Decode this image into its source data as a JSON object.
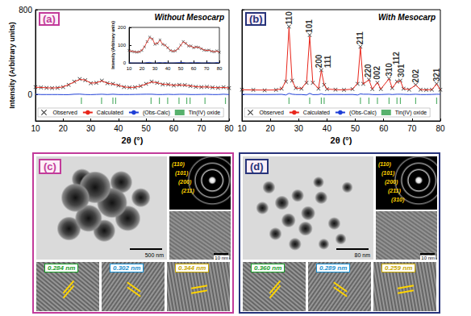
{
  "chart_data": [
    {
      "type": "line",
      "title": "(a)",
      "subtitle": "Without Mesocarp",
      "xlabel": "2θ (°)",
      "ylabel": "Intensity (Arbitrary units)",
      "xlim": [
        10,
        80
      ],
      "xticks": [
        10,
        20,
        30,
        40,
        50,
        60,
        70,
        80
      ],
      "ylim": [
        -250,
        800
      ],
      "yticks": [
        0,
        800
      ],
      "grid": false,
      "legend": "bottom",
      "tick_labels": true,
      "x": [
        10,
        12,
        14,
        16,
        18,
        20,
        22,
        24,
        26,
        28,
        30,
        32,
        34,
        36,
        38,
        40,
        42,
        44,
        46,
        48,
        50,
        52,
        54,
        56,
        58,
        60,
        62,
        64,
        66,
        68,
        70,
        72,
        74,
        76,
        78,
        80
      ],
      "series": [
        {
          "name": "Observed",
          "type": "scatter",
          "marker": "x",
          "color": "#000000",
          "values": [
            70,
            65,
            62,
            60,
            62,
            70,
            90,
            120,
            145,
            135,
            105,
            110,
            130,
            105,
            100,
            85,
            70,
            65,
            68,
            80,
            100,
            120,
            110,
            95,
            95,
            85,
            90,
            88,
            80,
            72,
            70,
            72,
            65,
            62,
            68,
            60
          ]
        },
        {
          "name": "Calculated",
          "type": "line",
          "color": "#e8261b",
          "values": [
            68,
            66,
            63,
            61,
            63,
            72,
            92,
            118,
            142,
            136,
            107,
            110,
            128,
            106,
            98,
            86,
            71,
            66,
            68,
            79,
            98,
            118,
            111,
            96,
            94,
            86,
            89,
            87,
            81,
            73,
            70,
            71,
            66,
            63,
            66,
            61
          ]
        },
        {
          "name": "(Obs-Calc)",
          "type": "line",
          "color": "#1f3fd6",
          "values": [
            2,
            -1,
            -1,
            -1,
            -1,
            -2,
            -2,
            2,
            3,
            -1,
            -2,
            0,
            2,
            -1,
            2,
            -1,
            -1,
            -1,
            0,
            1,
            2,
            2,
            -1,
            -1,
            1,
            -1,
            1,
            1,
            -1,
            -1,
            0,
            1,
            -1,
            -1,
            2,
            -1
          ]
        },
        {
          "name": "Tin(IV) oxide",
          "type": "scatter",
          "marker": "|",
          "color": "#2e9e48",
          "x": [
            26.6,
            33.9,
            38.0,
            39.0,
            51.8,
            54.8,
            57.8,
            61.9,
            64.7,
            65.9,
            71.3,
            78.7
          ],
          "values": [
            -60,
            -60,
            -60,
            -60,
            -60,
            -60,
            -60,
            -60,
            -60,
            -60,
            -60,
            -60
          ]
        }
      ],
      "inset": {
        "ylabel": "Intensity (Arbitrary units)",
        "xlim": [
          10,
          80
        ],
        "xticks": [
          10,
          20,
          30,
          40,
          50,
          60,
          70,
          80
        ],
        "ylim": [
          0,
          200
        ],
        "yticks": [
          0,
          100,
          200
        ]
      }
    },
    {
      "type": "line",
      "title": "(b)",
      "subtitle": "With Mesocarp",
      "xlabel": "2θ (°)",
      "xlim": [
        10,
        80
      ],
      "xticks": [
        10,
        20,
        30,
        40,
        50,
        60,
        70,
        80
      ],
      "ylim": [
        -250,
        800
      ],
      "yticks": [
        0,
        800
      ],
      "grid": false,
      "legend": "bottom",
      "tick_labels": "x",
      "x": [
        10,
        14,
        18,
        22,
        24,
        25.5,
        26.6,
        27.7,
        29,
        31,
        32.8,
        33.9,
        35,
        37,
        38,
        39,
        40,
        43,
        46,
        49,
        50.8,
        51.8,
        52.8,
        54.8,
        56,
        57.8,
        59,
        61.9,
        63,
        64.7,
        65.9,
        67,
        69,
        71.3,
        73,
        75,
        77,
        78.7,
        80
      ],
      "series": [
        {
          "name": "Observed",
          "type": "scatter",
          "marker": "x",
          "color": "#000000",
          "values": [
            45,
            42,
            40,
            42,
            55,
            120,
            640,
            130,
            60,
            55,
            110,
            560,
            110,
            55,
            230,
            90,
            50,
            45,
            42,
            50,
            100,
            450,
            100,
            140,
            50,
            110,
            50,
            150,
            60,
            120,
            130,
            55,
            45,
            90,
            45,
            42,
            45,
            100,
            45
          ]
        },
        {
          "name": "Calculated",
          "type": "line",
          "color": "#e8261b",
          "values": [
            44,
            42,
            41,
            42,
            54,
            125,
            630,
            128,
            61,
            56,
            115,
            550,
            112,
            56,
            225,
            92,
            51,
            45,
            43,
            50,
            105,
            445,
            98,
            138,
            51,
            112,
            51,
            148,
            61,
            118,
            128,
            54,
            46,
            88,
            46,
            43,
            45,
            98,
            44
          ]
        },
        {
          "name": "(Obs-Calc)",
          "type": "line",
          "color": "#1f3fd6",
          "values": [
            1,
            0,
            -1,
            0,
            1,
            -5,
            10,
            2,
            -1,
            -1,
            -5,
            10,
            -2,
            -1,
            5,
            -2,
            -1,
            0,
            -1,
            0,
            -5,
            5,
            2,
            2,
            -1,
            -2,
            -1,
            2,
            -1,
            2,
            2,
            1,
            -1,
            2,
            -1,
            -1,
            0,
            2,
            1
          ]
        },
        {
          "name": "Tin(IV) oxide",
          "type": "scatter",
          "marker": "|",
          "color": "#2e9e48",
          "x": [
            26.6,
            33.9,
            38.0,
            39.0,
            51.8,
            54.8,
            57.8,
            61.9,
            64.7,
            65.9,
            71.3,
            78.7
          ],
          "values": [
            -60,
            -60,
            -60,
            -60,
            -60,
            -60,
            -60,
            -60,
            -60,
            -60,
            -60,
            -60
          ]
        }
      ],
      "annotations": [
        {
          "text": "110",
          "x": 26.6,
          "y": 660
        },
        {
          "text": "101",
          "x": 33.9,
          "y": 580
        },
        {
          "text": "200",
          "x": 37.3,
          "y": 250
        },
        {
          "text": "111",
          "x": 40.3,
          "y": 250
        },
        {
          "text": "211",
          "x": 51.8,
          "y": 470
        },
        {
          "text": "220",
          "x": 54.5,
          "y": 160
        },
        {
          "text": "002",
          "x": 57.8,
          "y": 140
        },
        {
          "text": "310",
          "x": 61.9,
          "y": 170
        },
        {
          "text": "112",
          "x": 64.5,
          "y": 280
        },
        {
          "text": "301",
          "x": 66.3,
          "y": 160
        },
        {
          "text": "202",
          "x": 71.3,
          "y": 110
        },
        {
          "text": "321",
          "x": 78.7,
          "y": 120
        }
      ]
    }
  ],
  "panels": [
    {
      "label": "(c)",
      "scale_bars": [
        "500 nm",
        "10 nm"
      ],
      "saed": [
        "(110)",
        "(101)",
        "(200)",
        "(211)"
      ],
      "d_spacings": [
        "0.284 nm",
        "0.302 nm",
        "0.344 nm"
      ]
    },
    {
      "label": "(d)",
      "scale_bars": [
        "80 nm",
        "10 nm"
      ],
      "saed": [
        "(110)",
        "(101)",
        "(200)",
        "(211)",
        "(310)"
      ],
      "d_spacings": [
        "0.360 nm",
        "0.289 nm",
        "0.259 nm"
      ]
    }
  ]
}
